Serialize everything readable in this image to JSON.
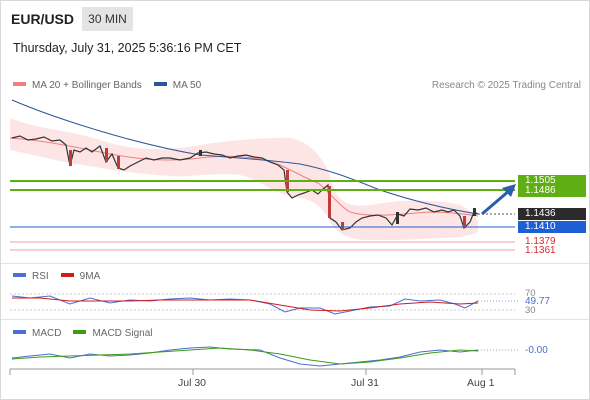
{
  "header": {
    "symbol": "EUR/USD",
    "timeframe": "30 MIN",
    "datetime": "Thursday, July 31, 2025 5:36:16 PM CET"
  },
  "main_legend": {
    "items": [
      {
        "label": "MA 20 + Bollinger Bands",
        "color": "#f08080"
      },
      {
        "label": "MA 50",
        "color": "#2b5797"
      }
    ],
    "attribution": "Research © 2025 Trading Central"
  },
  "price_levels": {
    "resistance_1": "1.1505",
    "resistance_2": "1.1486",
    "current": "1.1436",
    "pivot": "1.1410",
    "support_1": "1.1379",
    "support_2": "1.1361"
  },
  "rsi_panel": {
    "legend": [
      {
        "label": "RSI",
        "color": "#4a6fd0"
      },
      {
        "label": "9MA",
        "color": "#d01c1c"
      }
    ],
    "level_high": "70",
    "value": "49.77",
    "level_low": "30"
  },
  "macd_panel": {
    "legend": [
      {
        "label": "MACD",
        "color": "#4a6fd0"
      },
      {
        "label": "MACD Signal",
        "color": "#3d9b1a"
      }
    ],
    "value": "-0.00"
  },
  "x_axis": {
    "labels": [
      "Jul 30",
      "Jul 31",
      "Aug 1"
    ]
  },
  "colors": {
    "green_level": "#5fae14",
    "blue_level": "#1f5fd6",
    "red_level": "#d92b2b",
    "current_tag": "#2b2b2b",
    "bollinger_fill": "#fde0e0",
    "arrow": "#2b5fa8"
  },
  "chart_data": {
    "type": "line",
    "price_range_visible": [
      1.1355,
      1.1595
    ],
    "close_path": [
      1.155,
      1.1549,
      1.1548,
      1.1547,
      1.1546,
      1.1543,
      1.152,
      1.154,
      1.1535,
      1.153,
      1.153,
      1.1525,
      1.1523,
      1.152,
      1.153,
      1.153,
      1.1535,
      1.1532,
      1.1532,
      1.1535,
      1.1535,
      1.1534,
      1.1528,
      1.153,
      1.15,
      1.147,
      1.1478,
      1.147,
      1.1468,
      1.1465,
      1.147,
      1.149,
      1.142,
      1.1408,
      1.141,
      1.142,
      1.1425,
      1.1422,
      1.141,
      1.143,
      1.144,
      1.1442,
      1.1436,
      1.1438,
      1.1432,
      1.141,
      1.1436
    ],
    "ma50_path": [
      1.1583,
      1.157,
      1.156,
      1.155,
      1.1542,
      1.1535,
      1.153,
      1.1527,
      1.1522,
      1.1516,
      1.1505,
      1.148,
      1.1462,
      1.1448,
      1.144,
      1.1436
    ],
    "projection_target": 1.1505
  }
}
